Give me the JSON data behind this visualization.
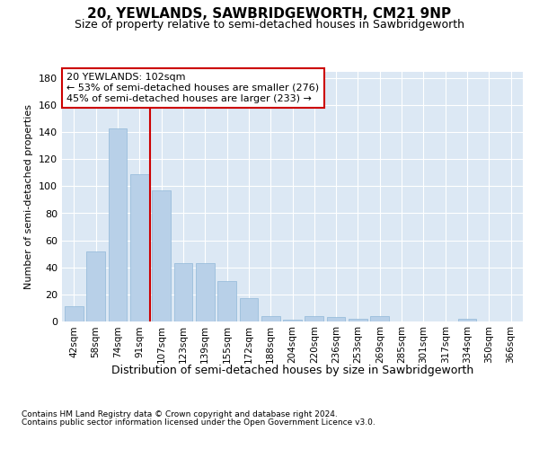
{
  "title": "20, YEWLANDS, SAWBRIDGEWORTH, CM21 9NP",
  "subtitle": "Size of property relative to semi-detached houses in Sawbridgeworth",
  "xlabel": "Distribution of semi-detached houses by size in Sawbridgeworth",
  "ylabel": "Number of semi-detached properties",
  "footnote1": "Contains HM Land Registry data © Crown copyright and database right 2024.",
  "footnote2": "Contains public sector information licensed under the Open Government Licence v3.0.",
  "categories": [
    "42sqm",
    "58sqm",
    "74sqm",
    "91sqm",
    "107sqm",
    "123sqm",
    "139sqm",
    "155sqm",
    "172sqm",
    "188sqm",
    "204sqm",
    "220sqm",
    "236sqm",
    "253sqm",
    "269sqm",
    "285sqm",
    "301sqm",
    "317sqm",
    "334sqm",
    "350sqm",
    "366sqm"
  ],
  "values": [
    11,
    52,
    143,
    109,
    97,
    43,
    43,
    30,
    17,
    4,
    1,
    4,
    3,
    2,
    4,
    0,
    0,
    0,
    2,
    0,
    0
  ],
  "bar_color": "#b8d0e8",
  "bar_edge_color": "#90b8d8",
  "vline_color": "#cc0000",
  "annotation_line1": "20 YEWLANDS: 102sqm",
  "annotation_line2": "← 53% of semi-detached houses are smaller (276)",
  "annotation_line3": "45% of semi-detached houses are larger (233) →",
  "ylim": [
    0,
    185
  ],
  "yticks": [
    0,
    20,
    40,
    60,
    80,
    100,
    120,
    140,
    160,
    180
  ],
  "bg_color": "#dce8f4",
  "grid_color": "#ffffff",
  "title_fontsize": 11,
  "subtitle_fontsize": 9,
  "xlabel_fontsize": 9,
  "ylabel_fontsize": 8,
  "tick_fontsize": 8,
  "xtick_fontsize": 7.5,
  "footnote_fontsize": 6.5,
  "annot_fontsize": 8
}
